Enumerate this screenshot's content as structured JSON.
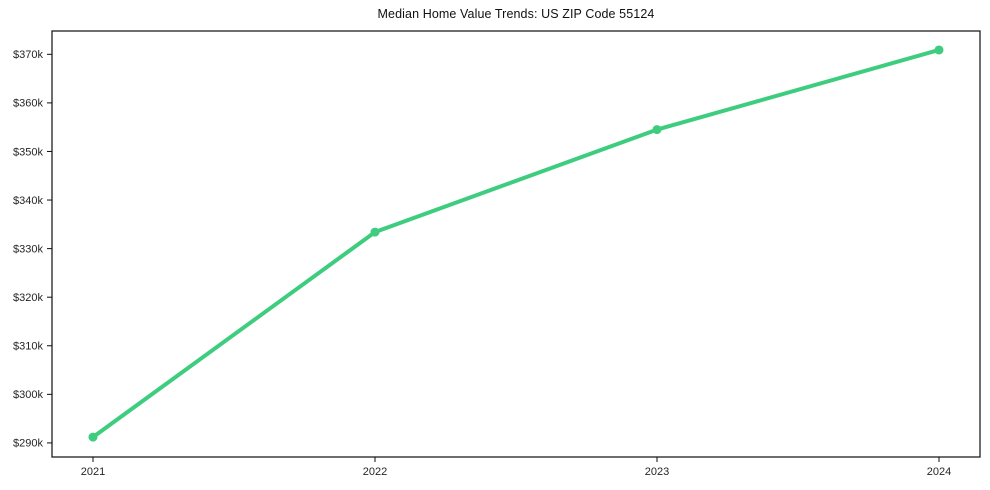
{
  "chart_data": {
    "type": "line",
    "title": "Median Home Value Trends: US ZIP Code 55124",
    "x_categories": [
      "2021",
      "2022",
      "2023",
      "2024"
    ],
    "series": [
      {
        "name": "Median home value",
        "values": [
          291200,
          333400,
          354500,
          370900
        ]
      }
    ],
    "y_ticks": [
      {
        "value": 290000,
        "label": "$290k"
      },
      {
        "value": 300000,
        "label": "$300k"
      },
      {
        "value": 310000,
        "label": "$310k"
      },
      {
        "value": 320000,
        "label": "$320k"
      },
      {
        "value": 330000,
        "label": "$330k"
      },
      {
        "value": 340000,
        "label": "$340k"
      },
      {
        "value": 350000,
        "label": "$350k"
      },
      {
        "value": 360000,
        "label": "$360k"
      },
      {
        "value": 370000,
        "label": "$370k"
      }
    ],
    "ylim": [
      287100,
      374800
    ],
    "grid": false,
    "legend": "none",
    "colors": {
      "line": "#3ecd7e",
      "marker": "#3ecd7e",
      "axis": "#0d0d0d",
      "tick_text": "#262626",
      "title_text": "#111111",
      "background": "#ffffff"
    }
  }
}
